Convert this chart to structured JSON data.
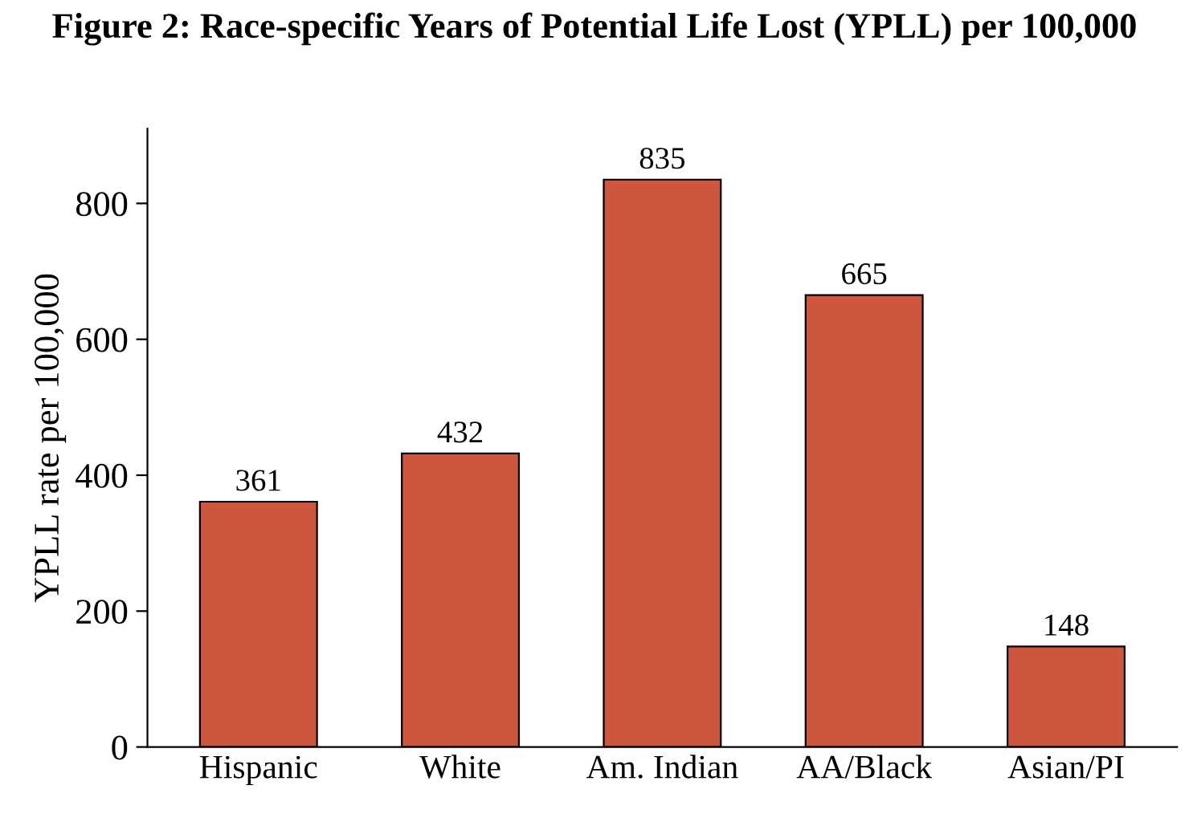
{
  "chart_data": {
    "type": "bar",
    "title": "Figure 2: Race-specific Years of Potential Life Lost (YPLL) per 100,000",
    "ylabel": "YPLL rate per 100,000",
    "categories": [
      "Hispanic",
      "White",
      "Am. Indian",
      "AA/Black",
      "Asian/PI"
    ],
    "values": [
      361,
      432,
      835,
      665,
      148
    ],
    "color": "#cd563c",
    "ylim": [
      0,
      910
    ],
    "yticks": [
      0,
      200,
      400,
      600,
      800
    ],
    "data_labels": true,
    "grid": false,
    "legend": false
  }
}
